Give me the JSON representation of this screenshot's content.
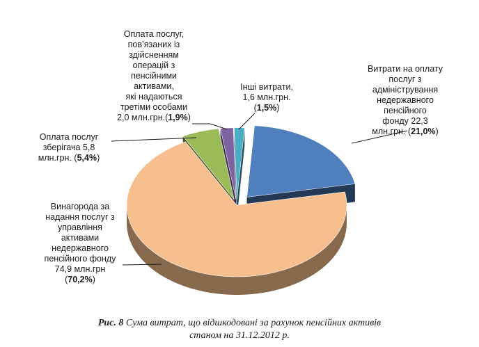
{
  "chart_data": {
    "type": "pie",
    "title": "",
    "categories": [
      "Витрати на оплату послуг з адміністрування недержавного пенсійного фонду",
      "Винагорода за надання послуг з управління активами недержавного пенсійного фонду",
      "Оплата послуг зберігача",
      "Оплата послуг, пов’язаних із здійсненням операцій з пенсійними активами, які надаються третіми особами",
      "Інші витрати"
    ],
    "values": [
      22.3,
      74.9,
      5.8,
      2.0,
      1.6
    ],
    "percents": [
      21.0,
      70.2,
      5.4,
      1.9,
      1.5
    ],
    "unit": "млн.грн.",
    "colors": [
      "#4f7fbd",
      "#f6bf8d",
      "#9bbb59",
      "#7f63a1",
      "#4bacc6"
    ],
    "exploded": true,
    "style": "3d"
  },
  "labels": {
    "admin": {
      "lines": [
        "Витрати на оплату",
        "послуг з",
        "адміністрування",
        "недержавного",
        "пенсійного",
        "фонду  22,3"
      ],
      "last": "млн.грн. (",
      "pct": "21,0%",
      "close": ")"
    },
    "asset_mgmt": {
      "lines": [
        "Винагорода  за",
        "надання послуг з",
        "управління",
        "активами",
        "недержавного",
        "пенсійного фонду",
        "74,9 млн.грн"
      ],
      "open": "(",
      "pct": "70,2%",
      "close": ")"
    },
    "custodian": {
      "lines": [
        "Оплата послуг",
        "зберігача 5,8"
      ],
      "last": "млн.грн. (",
      "pct": "5,4%",
      "close": ")"
    },
    "third_party": {
      "lines": [
        "Оплата послуг,",
        "пов’язаних із",
        "здійсненням",
        "операцій з",
        "пенсійними",
        "активами,",
        "які надаються",
        "третіми особами"
      ],
      "last": "2,0 млн.грн.(",
      "pct": "1,9%",
      "close": ")"
    },
    "other": {
      "lines": [
        "Інші витрати,",
        "1,6 млн.грн."
      ],
      "open": "(",
      "pct": "1,5%",
      "close": ")"
    }
  },
  "caption": {
    "prefix": "Рис. 8",
    "line1": " Сума витрат, що відшкодовані за рахунок пенсійних активів",
    "line2": "станом на 31.12.2012 р."
  }
}
